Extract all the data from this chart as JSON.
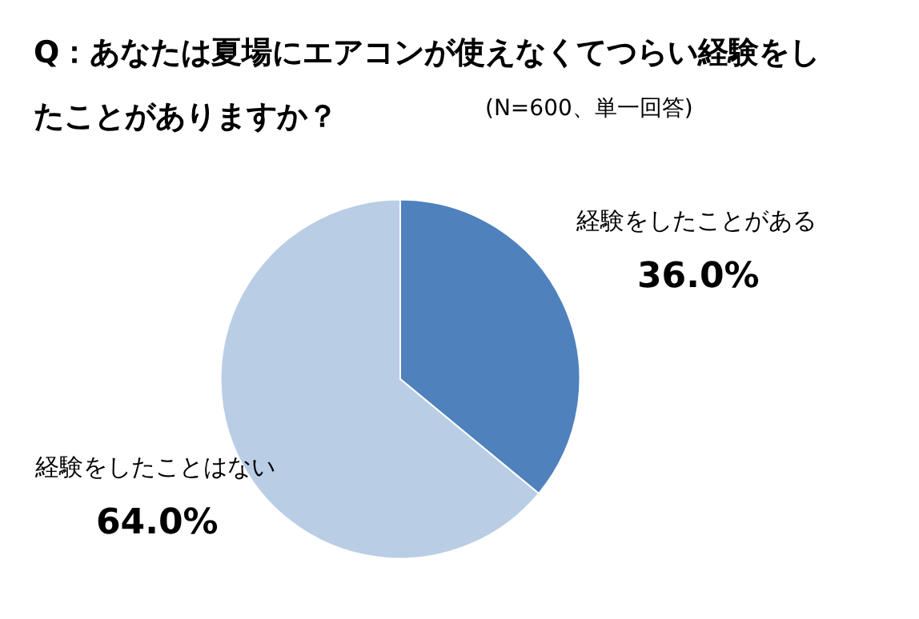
{
  "chart_data": {
    "type": "pie",
    "title": "Q：あなたは夏場にエアコンが使えなくてつらい経験をしたことがありますか？",
    "subtitle": "(N=600、単一回答)",
    "categories": [
      "経験をしたことがある",
      "経験をしたことはない"
    ],
    "values": [
      36.0,
      64.0
    ],
    "colors": [
      "#4f81bd",
      "#b9cde5"
    ],
    "value_labels": [
      "36.0%",
      "64.0%"
    ],
    "legend": false
  }
}
